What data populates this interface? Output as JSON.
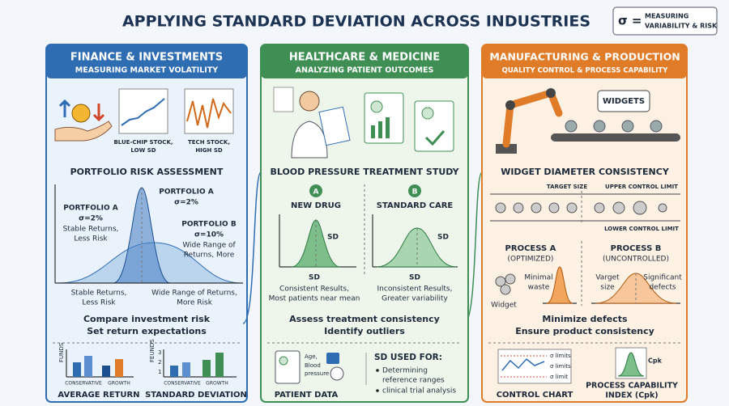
{
  "header": {
    "title": "APPLYING STANDARD DEVIATION ACROSS INDUSTRIES",
    "badge_symbol": "σ =",
    "badge_text": [
      "MEASURING",
      "VARIABILITY & RISK"
    ]
  },
  "finance": {
    "title": "FINANCE & INVESTMENTS",
    "subtitle": "MEASURING MARKET VOLATILITY",
    "icon_low": [
      "BLUE-CHIP STOCK,",
      "LOW SD"
    ],
    "icon_high": [
      "TECH STOCK,",
      "HIGH SD"
    ],
    "section": "PORTFOLIO RISK ASSESSMENT",
    "portfolio_a_left": [
      "PORTFOLIO A",
      "σ=2%",
      "Stable Returns,",
      "Less Risk"
    ],
    "portfolio_a_top": [
      "PORTFOLIO A",
      "σ=2%"
    ],
    "portfolio_b": [
      "PORTFOLIO B",
      "σ=10%",
      "Wide Range of",
      "Returns, More"
    ],
    "bottom_left": [
      "Stable Returns,",
      "Less Risk"
    ],
    "bottom_right": [
      "Wide Range of Returns,",
      "More Risk"
    ],
    "takeaways": [
      "Compare investment risk",
      "Set return expectations"
    ],
    "mini_chart_1": {
      "axis": "FUNDS",
      "categories": [
        "CONSERVATIVE",
        "GROWTH"
      ],
      "title": "AVERAGE RETURN"
    },
    "mini_chart_2": {
      "axis": "FEUNDS",
      "ticks": [
        "3",
        "2",
        "1"
      ],
      "categories": [
        "CONSERVATIVE",
        "GROWTH"
      ],
      "title": "STANDARD DEVIATION"
    }
  },
  "healthcare": {
    "title": "HEALTHCARE & MEDICINE",
    "subtitle": "ANALYZING PATIENT OUTCOMES",
    "section": "BLOOD PRESSURE TREATMENT STUDY",
    "group_a": {
      "badge": "A",
      "name": "NEW DRUG",
      "sd": "SD",
      "axis_label": "SD",
      "caption": [
        "Consistent Results,",
        "Most patients near mean"
      ]
    },
    "group_b": {
      "badge": "B",
      "name": "STANDARD CARE",
      "sd": "SD",
      "axis_label": "SD",
      "caption": [
        "Inconsistent Results,",
        "Greater variability"
      ]
    },
    "takeaways": [
      "Assess treatment consistency",
      "Identify outliers"
    ],
    "patient_fields": [
      "Age,",
      "Blood",
      "pressure"
    ],
    "patient_title": "PATIENT DATA",
    "uses_title": "SD USED FOR:",
    "uses": [
      [
        "Determining",
        "reference ranges"
      ],
      [
        "clinical trial analysis"
      ]
    ]
  },
  "manufacturing": {
    "title": "MANUFACTURING & PRODUCTION",
    "subtitle": "QUALITY CONTROL & PROCESS CAPABILITY",
    "bubble": "WIDGETS",
    "section": "WIDGET DIAMETER CONSISTENCY",
    "target": "TARGET SIZE",
    "upper": "UPPER CONTROL LIMIT",
    "lower": "LOWER CONTROL LIMIT",
    "process_a": [
      "PROCESS A",
      "(OPTIMIZED)"
    ],
    "process_b": [
      "PROCESS B",
      "(UNCONTROLLED)"
    ],
    "minimal": [
      "Minimal",
      "waste"
    ],
    "widget": "Widget",
    "target_size": [
      "Varget",
      "size"
    ],
    "defects": [
      "Significant",
      "defects"
    ],
    "takeaways": [
      "Minimize defects",
      "Ensure product consistency"
    ],
    "control_limits": [
      "σ limits",
      "σ limits",
      "σ limit"
    ],
    "control_title": "CONTROL CHART",
    "cpk_symbol": "Cpk",
    "cpk_title": [
      "PROCESS CAPABILITY",
      "INDEX (Cpk)"
    ]
  }
}
